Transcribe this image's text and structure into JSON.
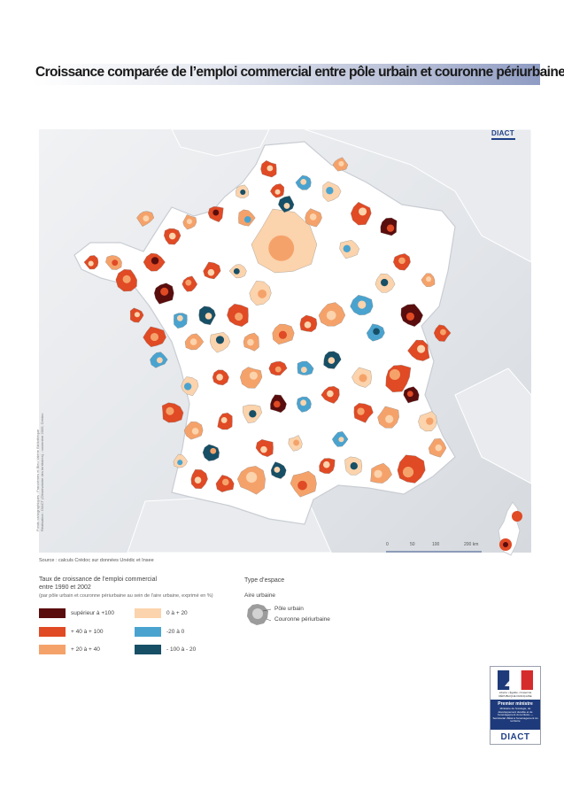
{
  "title": "Croissance comparée de l’emploi commercial entre pôle urbain et couronne périurbaine",
  "brand": "DIACT",
  "credits": {
    "line1": "Fonds cartographiques : Francièmes et Bleu Valérie Bibliothèque",
    "line2": "Réalisation : DIACT (Observatoire des territoires) - novembre 2005, Crédoc"
  },
  "source": "Source : calculs Crédoc sur données Unédic et Insee",
  "scale": {
    "ticks": [
      "0",
      "50",
      "100",
      "200 km"
    ]
  },
  "legend": {
    "title": "Taux de croissance de l’emploi commercial",
    "title_line2": "entre 1990 et 2002",
    "note": "(par pôle urbain et couronne périurbaine au sein de l’aire urbaine, exprimé en %)",
    "items": [
      {
        "label": "supérieur à +100",
        "color": "#5a0d0d"
      },
      {
        "label": "+ 40 à + 100",
        "color": "#e04a24"
      },
      {
        "label": "+ 20 à + 40",
        "color": "#f5a26a"
      },
      {
        "label": "0 à + 20",
        "color": "#fbd3ac"
      },
      {
        "label": "-20 à 0",
        "color": "#4aa3cf"
      },
      {
        "label": "- 100 à - 20",
        "color": "#174f66"
      }
    ]
  },
  "space_legend": {
    "title": "Type d’espace",
    "subtitle": "Aire urbaine",
    "pole": "Pôle urbain",
    "couronne": "Couronne périurbaine"
  },
  "gov_logo": {
    "motto": "Liberté • Égalité • Fraternité RÉPUBLIQUE FRANÇAISE",
    "pm": "Premier ministre",
    "desc": "Ministère de l’écologie, du développement durable et de l’aménagement du territoire — Secrétariat d’État à l’aménagement du territoire",
    "brand": "DIACT"
  }
}
